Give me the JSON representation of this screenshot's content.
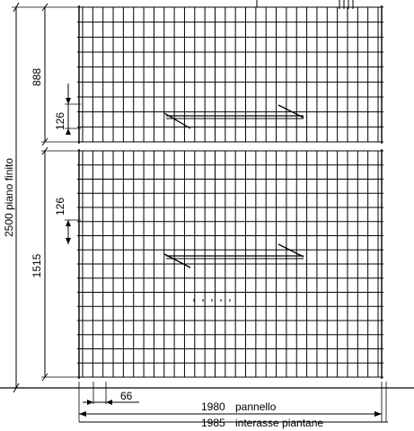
{
  "dimensions": {
    "total_height_label": "2500 piano finito",
    "upper_panel_height": "888",
    "lower_panel_height": "1515",
    "mesh_spacing_upper": "126",
    "mesh_spacing_lower": "126",
    "wire_spacing_horizontal": "66",
    "panel_width_value": "1980",
    "panel_width_text": "pannello",
    "post_spacing_value": "1985",
    "post_spacing_text": "interasse piantane"
  },
  "panels": [
    {
      "name": "upper-panel",
      "vertical_wires": 30,
      "horizontal_wires": 10,
      "height_mm": 888
    },
    {
      "name": "lower-panel",
      "vertical_wires": 30,
      "horizontal_wires": 17,
      "height_mm": 1515
    }
  ]
}
